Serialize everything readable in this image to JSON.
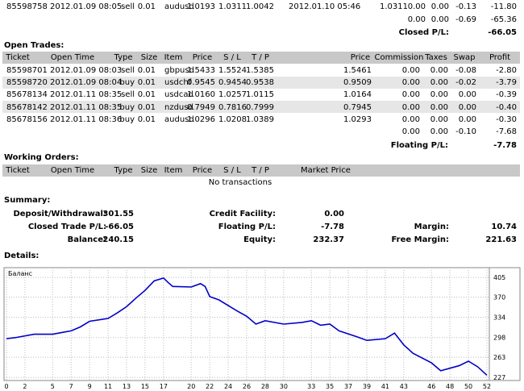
{
  "closed_trades": {
    "rows": [
      [
        "85598758",
        "2012.01.09 08:05",
        "sell",
        "0.01",
        "audusd",
        "1.0193",
        "1.0311",
        "1.0042",
        "2012.01.10 05:46",
        "1.0311",
        "0.00",
        "0.00",
        "-0.13",
        "-11.80"
      ]
    ],
    "totals": [
      "0.00",
      "0.00",
      "-0.69",
      "-65.36"
    ],
    "result": {
      "label": "Closed P/L:",
      "value": "-66.05"
    }
  },
  "open_trades": {
    "title": "Open Trades:",
    "headers": [
      "Ticket",
      "Open Time",
      "Type",
      "Size",
      "Item",
      "Price",
      "S / L",
      "T / P",
      "Price",
      "Commission",
      "Taxes",
      "Swap",
      "Profit"
    ],
    "rows": [
      [
        "85598701",
        "2012.01.09 08:03",
        "sell",
        "0.01",
        "gbpusd",
        "1.5433",
        "1.5524",
        "1.5385",
        "1.5461",
        "0.00",
        "0.00",
        "-0.08",
        "-2.80"
      ],
      [
        "85598720",
        "2012.01.09 08:04",
        "buy",
        "0.01",
        "usdchf",
        "0.9545",
        "0.9454",
        "0.9538",
        "0.9509",
        "0.00",
        "0.00",
        "-0.02",
        "-3.79"
      ],
      [
        "85678134",
        "2012.01.11 08:35",
        "sell",
        "0.01",
        "usdcad",
        "1.0160",
        "1.0257",
        "1.0115",
        "1.0164",
        "0.00",
        "0.00",
        "0.00",
        "-0.39"
      ],
      [
        "85678142",
        "2012.01.11 08:35",
        "buy",
        "0.01",
        "nzdusd",
        "0.7949",
        "0.7816",
        "0.7999",
        "0.7945",
        "0.00",
        "0.00",
        "0.00",
        "-0.40"
      ],
      [
        "85678156",
        "2012.01.11 08:36",
        "buy",
        "0.01",
        "audusd",
        "1.0296",
        "1.0208",
        "1.0389",
        "1.0293",
        "0.00",
        "0.00",
        "0.00",
        "-0.30"
      ]
    ],
    "totals": [
      "0.00",
      "0.00",
      "-0.10",
      "-7.68"
    ],
    "result": {
      "label": "Floating P/L:",
      "value": "-7.78"
    }
  },
  "working_orders": {
    "title": "Working Orders:",
    "headers": [
      "Ticket",
      "Open Time",
      "Type",
      "Size",
      "Item",
      "Price",
      "S / L",
      "T / P",
      "Market Price"
    ],
    "message": "No transactions"
  },
  "summary": {
    "title": "Summary:",
    "items": [
      {
        "label": "Deposit/Withdrawal:",
        "value": "301.55"
      },
      {
        "label": "Credit Facility:",
        "value": "0.00"
      },
      {
        "label": "Closed Trade P/L:",
        "value": "-66.05"
      },
      {
        "label": "Floating P/L:",
        "value": "-7.78"
      },
      {
        "label": "Margin:",
        "value": "10.74"
      },
      {
        "label": "Balance:",
        "value": "240.15"
      },
      {
        "label": "Equity:",
        "value": "232.37"
      },
      {
        "label": "Free Margin:",
        "value": "221.63"
      }
    ]
  },
  "details": {
    "title": "Details:"
  },
  "chart_data": {
    "type": "line",
    "series": [
      {
        "name": "Баланс",
        "color": "#0000c8",
        "x": [
          0,
          1,
          3,
          5,
          6,
          7,
          8,
          9,
          11,
          12,
          13,
          14,
          15,
          16,
          17,
          17.5,
          18,
          20,
          21,
          21.5,
          22,
          23,
          25,
          26,
          27,
          28,
          30,
          32,
          33,
          34,
          35,
          36,
          38,
          39,
          41,
          42,
          43,
          44,
          46,
          47,
          49,
          50,
          51,
          52
        ],
        "values": [
          296,
          298,
          304,
          304,
          307,
          310,
          317,
          327,
          332,
          342,
          353,
          368,
          382,
          399,
          404,
          396,
          389,
          388,
          394,
          389,
          371,
          365,
          345,
          336,
          322,
          328,
          322,
          325,
          328,
          320,
          322,
          310,
          299,
          293,
          296,
          306,
          285,
          270,
          253,
          239,
          248,
          256,
          246,
          231
        ]
      }
    ],
    "xlim": [
      0,
      52
    ],
    "ylim": [
      223,
      421
    ],
    "xticks": [
      0,
      2,
      5,
      7,
      9,
      11,
      13,
      15,
      17,
      20,
      22,
      24,
      26,
      28,
      30,
      33,
      35,
      37,
      39,
      41,
      43,
      46,
      48,
      50,
      52
    ],
    "yticks": [
      227,
      263,
      298,
      334,
      370,
      405
    ],
    "grid": true
  }
}
